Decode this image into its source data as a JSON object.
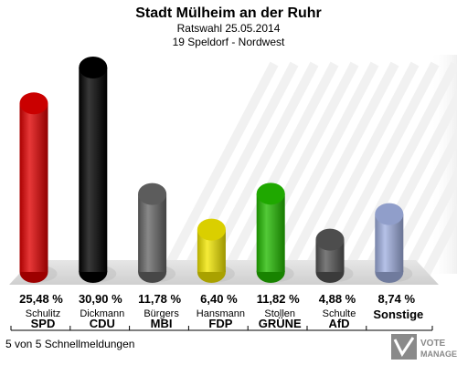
{
  "chart_data": {
    "type": "bar",
    "title": "Stadt Mülheim an der Ruhr",
    "subtitle": "Ratswahl 25.05.2014",
    "subtitle2": "19 Speldorf - Nordwest",
    "categories": [
      "SPD",
      "CDU",
      "MBI",
      "FDP",
      "GRÜNE",
      "AfD",
      "Sonstige"
    ],
    "candidates": [
      "Schulitz",
      "Dickmann",
      "Bürgers",
      "Hansmann",
      "Stollen",
      "Schulte",
      ""
    ],
    "values": [
      25.48,
      30.9,
      11.78,
      6.4,
      11.82,
      4.88,
      8.74
    ],
    "value_labels": [
      "25,48 %",
      "30,90 %",
      "11,78 %",
      "6,40 %",
      "11,82 %",
      "4,88 %",
      "8,74 %"
    ],
    "colors": [
      "#e00000",
      "#000000",
      "#666666",
      "#f2e600",
      "#22bb00",
      "#555555",
      "#a0b0e0"
    ],
    "ylim": [
      0,
      30.9
    ]
  },
  "footer": "5 von 5 Schnellmeldungen",
  "logo": {
    "line1": "VOTE",
    "line2": "MANAGER"
  }
}
